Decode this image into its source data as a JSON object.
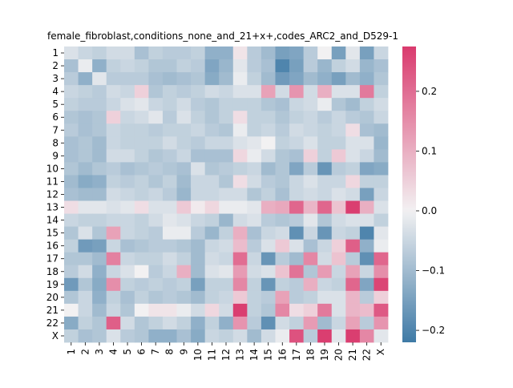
{
  "chart_data": {
    "type": "heatmap",
    "title": "female_fibroblast,conditions_none_and_21+x+,codes_ARC2_and_D529-1",
    "row_labels": [
      "1",
      "2",
      "3",
      "4",
      "5",
      "6",
      "7",
      "8",
      "9",
      "10",
      "11",
      "12",
      "13",
      "14",
      "15",
      "16",
      "17",
      "18",
      "19",
      "20",
      "21",
      "22",
      "X"
    ],
    "col_labels": [
      "1",
      "2",
      "3",
      "4",
      "5",
      "6",
      "7",
      "8",
      "9",
      "10",
      "11",
      "12",
      "13",
      "14",
      "15",
      "16",
      "17",
      "18",
      "19",
      "20",
      "21",
      "22",
      "X"
    ],
    "vmin": -0.22,
    "vmax": 0.275,
    "colorbar_ticks": [
      -0.2,
      -0.1,
      0.0,
      0.1,
      0.2
    ],
    "colorbar_tick_labels": [
      "−0.2",
      "−0.1",
      "0.0",
      "0.1",
      "0.2"
    ],
    "colormap": {
      "low": "#3f7aa6",
      "mid": "#f2f1f2",
      "high": "#da3b6e"
    },
    "values": [
      [
        -0.03,
        -0.05,
        -0.06,
        -0.04,
        -0.04,
        -0.09,
        -0.06,
        -0.07,
        -0.07,
        -0.06,
        -0.12,
        -0.12,
        0.02,
        -0.07,
        -0.1,
        -0.15,
        -0.14,
        -0.07,
        0.0,
        -0.15,
        -0.02,
        -0.15,
        -0.05
      ],
      [
        -0.09,
        -0.01,
        -0.12,
        -0.06,
        -0.05,
        -0.06,
        -0.08,
        -0.08,
        -0.06,
        -0.07,
        -0.14,
        -0.11,
        -0.02,
        -0.07,
        -0.09,
        -0.2,
        -0.15,
        -0.07,
        -0.11,
        -0.06,
        -0.04,
        -0.11,
        -0.09
      ],
      [
        -0.07,
        -0.12,
        -0.02,
        -0.07,
        -0.07,
        -0.07,
        -0.09,
        -0.1,
        -0.09,
        -0.08,
        -0.13,
        -0.1,
        -0.01,
        -0.06,
        -0.1,
        -0.16,
        -0.14,
        -0.1,
        -0.12,
        -0.15,
        -0.1,
        -0.12,
        -0.08
      ],
      [
        -0.05,
        -0.06,
        -0.07,
        -0.04,
        -0.05,
        0.05,
        -0.08,
        -0.06,
        -0.07,
        -0.06,
        -0.04,
        -0.05,
        -0.03,
        -0.03,
        0.12,
        -0.04,
        0.14,
        -0.04,
        0.1,
        -0.03,
        -0.03,
        0.18,
        -0.06
      ],
      [
        -0.06,
        -0.07,
        -0.07,
        -0.05,
        -0.03,
        -0.02,
        -0.05,
        -0.06,
        -0.04,
        -0.07,
        -0.08,
        -0.06,
        -0.06,
        -0.06,
        -0.08,
        -0.09,
        -0.05,
        -0.04,
        -0.01,
        -0.08,
        -0.1,
        -0.06,
        -0.04
      ],
      [
        -0.08,
        -0.09,
        -0.08,
        0.05,
        -0.05,
        -0.04,
        -0.02,
        -0.07,
        -0.03,
        -0.06,
        -0.08,
        -0.06,
        0.03,
        -0.06,
        -0.06,
        -0.08,
        -0.06,
        -0.05,
        -0.07,
        -0.05,
        -0.07,
        -0.08,
        -0.05
      ],
      [
        -0.07,
        -0.09,
        -0.08,
        -0.05,
        -0.06,
        -0.06,
        -0.07,
        -0.06,
        -0.06,
        -0.05,
        -0.07,
        -0.08,
        -0.01,
        -0.06,
        -0.05,
        -0.07,
        -0.04,
        -0.05,
        -0.06,
        -0.05,
        0.03,
        -0.09,
        -0.1
      ],
      [
        -0.09,
        -0.08,
        -0.1,
        -0.05,
        -0.06,
        -0.06,
        -0.06,
        -0.04,
        -0.06,
        -0.07,
        -0.05,
        -0.05,
        -0.03,
        -0.02,
        0.0,
        -0.06,
        -0.05,
        -0.03,
        -0.06,
        -0.06,
        -0.03,
        -0.03,
        -0.11
      ],
      [
        -0.09,
        -0.08,
        -0.1,
        -0.04,
        -0.04,
        -0.06,
        -0.08,
        -0.07,
        -0.05,
        -0.09,
        -0.09,
        -0.09,
        0.04,
        -0.01,
        -0.04,
        -0.08,
        -0.09,
        0.05,
        -0.06,
        0.06,
        -0.03,
        -0.05,
        -0.1
      ],
      [
        -0.08,
        -0.1,
        -0.08,
        -0.07,
        -0.09,
        -0.08,
        -0.07,
        -0.08,
        -0.09,
        -0.03,
        -0.08,
        -0.07,
        -0.06,
        -0.05,
        -0.1,
        -0.08,
        -0.14,
        -0.07,
        -0.17,
        -0.07,
        -0.06,
        -0.14,
        -0.13
      ],
      [
        -0.1,
        -0.13,
        -0.12,
        -0.06,
        -0.07,
        -0.06,
        -0.08,
        -0.06,
        -0.1,
        -0.05,
        -0.05,
        -0.08,
        0.03,
        -0.04,
        -0.07,
        -0.08,
        -0.05,
        -0.03,
        -0.05,
        -0.05,
        0.04,
        -0.06,
        -0.06
      ],
      [
        -0.09,
        -0.1,
        -0.1,
        -0.04,
        -0.05,
        -0.06,
        -0.05,
        -0.07,
        -0.11,
        -0.05,
        -0.05,
        -0.04,
        -0.04,
        -0.08,
        -0.06,
        -0.09,
        -0.05,
        -0.04,
        -0.05,
        -0.03,
        -0.04,
        -0.15,
        -0.05
      ],
      [
        0.03,
        -0.02,
        -0.02,
        -0.03,
        -0.02,
        0.03,
        -0.03,
        -0.03,
        0.06,
        0.01,
        0.04,
        -0.01,
        -0.01,
        -0.02,
        0.1,
        0.11,
        0.21,
        0.09,
        0.21,
        0.07,
        0.27,
        0.1,
        -0.03
      ],
      [
        -0.05,
        -0.06,
        -0.06,
        -0.05,
        -0.05,
        -0.06,
        -0.04,
        -0.02,
        -0.03,
        -0.05,
        -0.06,
        -0.11,
        -0.04,
        -0.03,
        -0.07,
        -0.08,
        -0.07,
        -0.02,
        -0.08,
        -0.04,
        -0.03,
        -0.03,
        -0.06
      ],
      [
        -0.08,
        -0.03,
        -0.08,
        0.12,
        -0.05,
        -0.06,
        -0.07,
        -0.01,
        -0.01,
        -0.07,
        -0.11,
        -0.06,
        0.1,
        -0.09,
        -0.05,
        -0.04,
        -0.18,
        -0.05,
        -0.17,
        -0.05,
        -0.06,
        -0.2,
        -0.02
      ],
      [
        -0.06,
        -0.16,
        -0.15,
        -0.05,
        -0.09,
        -0.08,
        -0.07,
        -0.07,
        -0.08,
        -0.1,
        -0.05,
        -0.04,
        0.08,
        -0.07,
        -0.03,
        0.06,
        -0.03,
        -0.09,
        -0.05,
        0.05,
        0.22,
        -0.12,
        -0.01
      ],
      [
        -0.08,
        -0.08,
        -0.1,
        0.17,
        -0.05,
        -0.06,
        -0.06,
        -0.04,
        -0.06,
        -0.1,
        -0.04,
        -0.05,
        0.2,
        -0.05,
        -0.17,
        -0.07,
        -0.1,
        0.16,
        -0.04,
        0.07,
        -0.07,
        -0.18,
        0.21
      ],
      [
        -0.07,
        -0.04,
        -0.12,
        -0.05,
        -0.03,
        0.0,
        -0.07,
        -0.05,
        0.1,
        -0.1,
        -0.03,
        -0.02,
        0.13,
        -0.04,
        -0.03,
        0.07,
        0.19,
        -0.08,
        0.13,
        -0.05,
        0.12,
        -0.05,
        0.15
      ],
      [
        -0.16,
        -0.08,
        -0.13,
        0.15,
        -0.06,
        -0.07,
        -0.06,
        -0.07,
        -0.06,
        -0.15,
        -0.06,
        -0.06,
        0.16,
        -0.06,
        -0.17,
        -0.06,
        -0.07,
        0.1,
        -0.05,
        -0.06,
        0.21,
        -0.14,
        0.26
      ],
      [
        -0.08,
        -0.05,
        -0.12,
        -0.06,
        -0.09,
        -0.06,
        -0.08,
        -0.07,
        -0.08,
        -0.1,
        -0.06,
        -0.05,
        0.06,
        -0.06,
        -0.07,
        0.12,
        -0.07,
        -0.06,
        -0.03,
        -0.03,
        0.09,
        -0.07,
        0.05
      ],
      [
        0.0,
        -0.05,
        -0.1,
        -0.05,
        -0.08,
        0.0,
        0.02,
        0.02,
        -0.01,
        -0.04,
        0.04,
        -0.04,
        0.27,
        -0.06,
        -0.08,
        0.16,
        0.03,
        0.05,
        0.18,
        -0.03,
        0.09,
        0.08,
        0.23
      ],
      [
        -0.13,
        -0.06,
        -0.08,
        0.22,
        -0.04,
        -0.08,
        -0.06,
        -0.04,
        -0.06,
        -0.12,
        -0.06,
        -0.12,
        0.14,
        -0.07,
        -0.18,
        -0.04,
        -0.06,
        0.13,
        -0.1,
        -0.05,
        0.12,
        -0.07,
        0.14
      ],
      [
        -0.06,
        -0.09,
        -0.08,
        -0.03,
        -0.07,
        -0.08,
        -0.12,
        -0.12,
        -0.09,
        -0.13,
        -0.05,
        -0.06,
        -0.04,
        -0.1,
        -0.04,
        -0.01,
        0.24,
        -0.07,
        0.27,
        -0.02,
        0.27,
        0.16,
        -0.02
      ]
    ]
  }
}
